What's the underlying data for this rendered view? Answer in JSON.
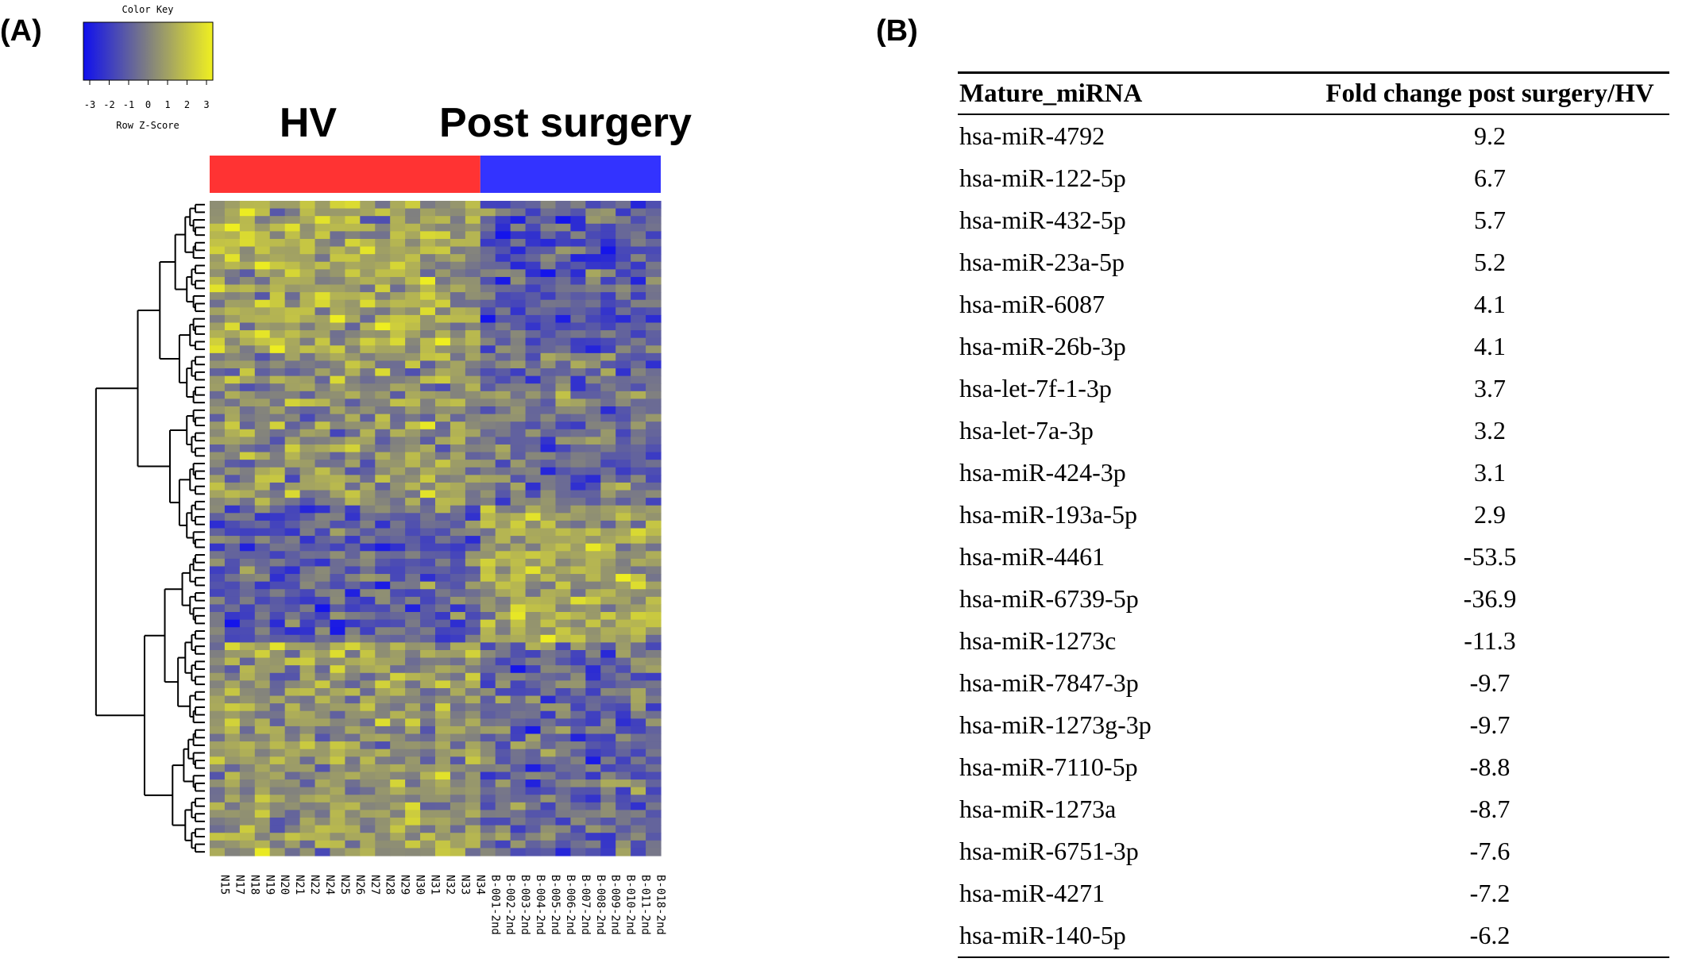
{
  "panel_a": {
    "label": "(A)",
    "color_key": {
      "title": "Color Key",
      "ticks": [
        "-3",
        "-2",
        "-1",
        "0",
        "1",
        "2",
        "3"
      ],
      "axis_label": "Row Z-Score",
      "low_color": "#1010ee",
      "mid_color": "#808080",
      "high_color": "#f0f020"
    },
    "groups": [
      {
        "name": "HV",
        "color": "#ff3333"
      },
      {
        "name": "Post surgery",
        "color": "#3333ff"
      }
    ]
  },
  "chart_data": {
    "type": "heatmap",
    "columns": [
      "N15",
      "N17",
      "N18",
      "N19",
      "N20",
      "N21",
      "N22",
      "N24",
      "N25",
      "N26",
      "N27",
      "N28",
      "N29",
      "N30",
      "N31",
      "N32",
      "N33",
      "N34",
      "B-001-2nd",
      "B-002-2nd",
      "B-003-2nd",
      "B-004-2nd",
      "B-005-2nd",
      "B-006-2nd",
      "B-007-2nd",
      "B-008-2nd",
      "B-009-2nd",
      "B-010-2nd",
      "B-011-2nd",
      "B-018-2nd"
    ],
    "column_groups": [
      "HV",
      "HV",
      "HV",
      "HV",
      "HV",
      "HV",
      "HV",
      "HV",
      "HV",
      "HV",
      "HV",
      "HV",
      "HV",
      "HV",
      "HV",
      "HV",
      "HV",
      "HV",
      "Post surgery",
      "Post surgery",
      "Post surgery",
      "Post surgery",
      "Post surgery",
      "Post surgery",
      "Post surgery",
      "Post surgery",
      "Post surgery",
      "Post surgery",
      "Post surgery",
      "Post surgery"
    ],
    "value_range": [
      -3,
      3
    ],
    "value_label": "Row Z-Score"
  },
  "panel_b": {
    "label": "(B)",
    "headers": [
      "Mature_miRNA",
      "Fold change post surgery/HV"
    ],
    "rows": [
      [
        "hsa-miR-4792",
        "9.2"
      ],
      [
        "hsa-miR-122-5p",
        "6.7"
      ],
      [
        "hsa-miR-432-5p",
        "5.7"
      ],
      [
        "hsa-miR-23a-5p",
        "5.2"
      ],
      [
        "hsa-miR-6087",
        "4.1"
      ],
      [
        "hsa-miR-26b-3p",
        "4.1"
      ],
      [
        "hsa-let-7f-1-3p",
        "3.7"
      ],
      [
        "hsa-let-7a-3p",
        "3.2"
      ],
      [
        "hsa-miR-424-3p",
        "3.1"
      ],
      [
        "hsa-miR-193a-5p",
        "2.9"
      ],
      [
        "hsa-miR-4461",
        "-53.5"
      ],
      [
        "hsa-miR-6739-5p",
        "-36.9"
      ],
      [
        "hsa-miR-1273c",
        "-11.3"
      ],
      [
        "hsa-miR-7847-3p",
        "-9.7"
      ],
      [
        "hsa-miR-1273g-3p",
        "-9.7"
      ],
      [
        "hsa-miR-7110-5p",
        "-8.8"
      ],
      [
        "hsa-miR-1273a",
        "-8.7"
      ],
      [
        "hsa-miR-6751-3p",
        "-7.6"
      ],
      [
        "hsa-miR-4271",
        "-7.2"
      ],
      [
        "hsa-miR-140-5p",
        "-6.2"
      ]
    ]
  }
}
